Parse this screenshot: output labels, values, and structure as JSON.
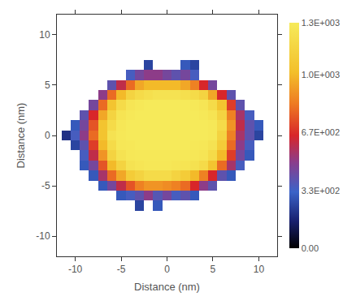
{
  "chart_data": {
    "type": "heatmap",
    "xlabel": "Distance (nm)",
    "ylabel": "Distance (nm)",
    "xlim": [
      -12,
      12
    ],
    "ylim": [
      -12,
      12
    ],
    "xticks": [
      -10,
      -5,
      0,
      5,
      10
    ],
    "yticks": [
      -10,
      -5,
      0,
      5,
      10
    ],
    "grid": false,
    "x": [
      -12,
      -11,
      -10,
      -9,
      -8,
      -7,
      -6,
      -5,
      -4,
      -3,
      -2,
      -1,
      0,
      1,
      2,
      3,
      4,
      5,
      6,
      7,
      8,
      9,
      10,
      11,
      12
    ],
    "y": [
      -12,
      -11,
      -10,
      -9,
      -8,
      -7,
      -6,
      -5,
      -4,
      -3,
      -2,
      -1,
      0,
      1,
      2,
      3,
      4,
      5,
      6,
      7,
      8,
      9,
      10,
      11,
      12
    ],
    "cells": [
      [
        null,
        null,
        null,
        null,
        null,
        null,
        null,
        null,
        null,
        null,
        null,
        null,
        null,
        null,
        null,
        null,
        null,
        null,
        null,
        null,
        null,
        null,
        null,
        null,
        null
      ],
      [
        null,
        null,
        null,
        null,
        null,
        null,
        null,
        null,
        null,
        null,
        null,
        null,
        null,
        null,
        null,
        null,
        null,
        null,
        null,
        null,
        null,
        null,
        null,
        null,
        null
      ],
      [
        null,
        null,
        null,
        null,
        null,
        null,
        null,
        null,
        null,
        null,
        null,
        null,
        null,
        null,
        null,
        null,
        null,
        null,
        null,
        null,
        null,
        null,
        null,
        null,
        null
      ],
      [
        null,
        null,
        null,
        null,
        null,
        null,
        null,
        null,
        null,
        null,
        null,
        null,
        null,
        null,
        null,
        null,
        null,
        null,
        null,
        null,
        null,
        null,
        null,
        null,
        null
      ],
      [
        null,
        null,
        null,
        null,
        null,
        null,
        null,
        null,
        null,
        null,
        null,
        null,
        null,
        null,
        null,
        null,
        null,
        null,
        null,
        null,
        null,
        null,
        null,
        null,
        null
      ],
      [
        null,
        null,
        null,
        null,
        null,
        null,
        null,
        null,
        null,
        250,
        null,
        300,
        null,
        null,
        null,
        null,
        null,
        null,
        null,
        null,
        null,
        null,
        null,
        null,
        null
      ],
      [
        null,
        null,
        null,
        null,
        null,
        null,
        null,
        300,
        350,
        400,
        500,
        380,
        450,
        350,
        400,
        300,
        null,
        null,
        null,
        null,
        null,
        null,
        null,
        null,
        null
      ],
      [
        null,
        null,
        null,
        null,
        null,
        300,
        450,
        600,
        750,
        850,
        900,
        900,
        880,
        850,
        800,
        650,
        500,
        400,
        null,
        null,
        null,
        null,
        null,
        null,
        null
      ],
      [
        null,
        null,
        null,
        null,
        300,
        550,
        800,
        950,
        1100,
        1150,
        1200,
        1200,
        1200,
        1150,
        1100,
        1000,
        850,
        650,
        400,
        300,
        null,
        null,
        null,
        null,
        null
      ],
      [
        null,
        null,
        null,
        300,
        450,
        750,
        1000,
        1150,
        1250,
        1270,
        1280,
        1280,
        1280,
        1270,
        1260,
        1240,
        1200,
        1050,
        800,
        550,
        350,
        null,
        null,
        null,
        null
      ],
      [
        null,
        null,
        null,
        350,
        600,
        900,
        1150,
        1250,
        1280,
        1290,
        1290,
        1290,
        1290,
        1290,
        1290,
        1280,
        1270,
        1200,
        1000,
        700,
        450,
        300,
        null,
        null,
        null
      ],
      [
        null,
        null,
        250,
        400,
        700,
        1000,
        1200,
        1280,
        1290,
        1300,
        1300,
        1300,
        1300,
        1300,
        1300,
        1290,
        1280,
        1250,
        1100,
        800,
        500,
        350,
        null,
        null,
        null
      ],
      [
        null,
        200,
        350,
        500,
        800,
        1050,
        1250,
        1290,
        1300,
        1300,
        1300,
        1300,
        1300,
        1300,
        1300,
        1300,
        1300,
        1290,
        1150,
        850,
        550,
        400,
        250,
        null,
        null
      ],
      [
        null,
        null,
        300,
        450,
        750,
        1050,
        1200,
        1280,
        1300,
        1300,
        1300,
        1300,
        1300,
        1300,
        1300,
        1300,
        1300,
        1290,
        1200,
        900,
        600,
        400,
        300,
        null,
        null
      ],
      [
        null,
        null,
        null,
        400,
        650,
        950,
        1150,
        1260,
        1290,
        1300,
        1300,
        1300,
        1300,
        1300,
        1300,
        1300,
        1290,
        1260,
        1150,
        850,
        550,
        350,
        null,
        null,
        null
      ],
      [
        null,
        null,
        null,
        null,
        450,
        800,
        1050,
        1200,
        1270,
        1290,
        1300,
        1300,
        1300,
        1300,
        1300,
        1290,
        1270,
        1200,
        1050,
        700,
        400,
        null,
        null,
        null,
        null
      ],
      [
        null,
        null,
        null,
        null,
        null,
        500,
        800,
        1000,
        1150,
        1200,
        1230,
        1250,
        1250,
        1250,
        1230,
        1200,
        1150,
        950,
        650,
        400,
        null,
        null,
        null,
        null,
        null
      ],
      [
        null,
        null,
        null,
        null,
        null,
        null,
        400,
        600,
        800,
        950,
        1000,
        1000,
        1000,
        1000,
        950,
        850,
        650,
        450,
        null,
        null,
        null,
        null,
        null,
        null,
        null
      ],
      [
        null,
        null,
        null,
        null,
        null,
        null,
        null,
        null,
        350,
        450,
        500,
        500,
        450,
        400,
        450,
        350,
        null,
        null,
        null,
        null,
        null,
        null,
        null,
        null,
        null
      ],
      [
        null,
        null,
        null,
        null,
        null,
        null,
        null,
        null,
        null,
        null,
        250,
        null,
        null,
        null,
        300,
        250,
        null,
        null,
        null,
        null,
        null,
        null,
        null,
        null,
        null
      ],
      [
        null,
        null,
        null,
        null,
        null,
        null,
        null,
        null,
        null,
        null,
        null,
        null,
        null,
        null,
        null,
        null,
        null,
        null,
        null,
        null,
        null,
        null,
        null,
        null,
        null
      ],
      [
        null,
        null,
        null,
        null,
        null,
        null,
        null,
        null,
        null,
        null,
        null,
        null,
        null,
        null,
        null,
        null,
        null,
        null,
        null,
        null,
        null,
        null,
        null,
        null,
        null
      ],
      [
        null,
        null,
        null,
        null,
        null,
        null,
        null,
        null,
        null,
        null,
        null,
        null,
        null,
        null,
        null,
        null,
        null,
        null,
        null,
        null,
        null,
        null,
        null,
        null,
        null
      ],
      [
        null,
        null,
        null,
        null,
        null,
        null,
        null,
        null,
        null,
        null,
        null,
        null,
        null,
        null,
        null,
        null,
        null,
        null,
        null,
        null,
        null,
        null,
        null,
        null,
        null
      ],
      [
        null,
        null,
        null,
        null,
        null,
        null,
        null,
        null,
        null,
        null,
        null,
        null,
        null,
        null,
        null,
        null,
        null,
        null,
        null,
        null,
        null,
        null,
        null,
        null,
        null
      ]
    ],
    "colorbar_range": [
      0,
      1300
    ],
    "colorbar_ticks": [
      {
        "value": 0,
        "label": "0.00"
      },
      {
        "value": 330,
        "label": "3.3E+002"
      },
      {
        "value": 670,
        "label": "6.7E+002"
      },
      {
        "value": 1000,
        "label": "1.0E+003"
      },
      {
        "value": 1300,
        "label": "1.3E+003"
      }
    ]
  }
}
